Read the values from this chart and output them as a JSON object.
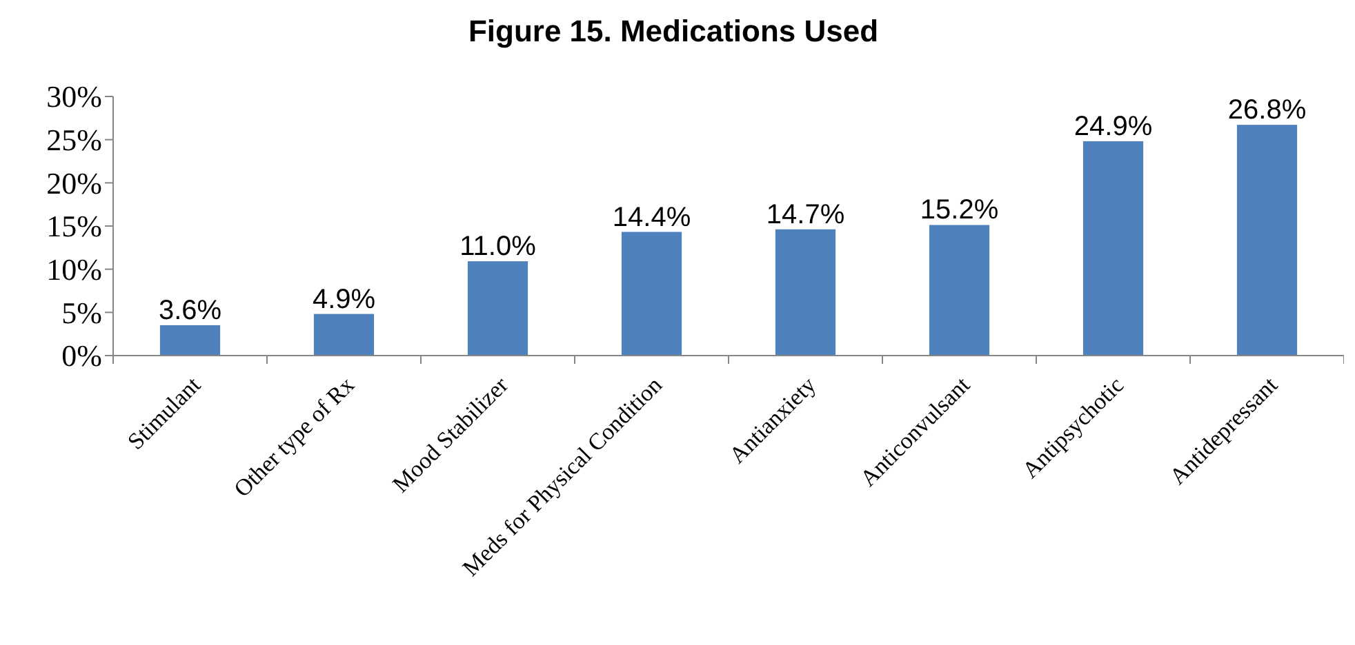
{
  "chart_data": {
    "type": "bar",
    "title": "Figure 15. Medications Used",
    "categories": [
      "Stimulant",
      "Other type of Rx",
      "Mood Stabilizer",
      "Meds for Physical Condition",
      "Antianxiety",
      "Anticonvulsant",
      "Antipsychotic",
      "Antidepressant"
    ],
    "values": [
      3.6,
      4.9,
      11.0,
      14.4,
      14.7,
      15.2,
      24.9,
      26.8
    ],
    "value_labels": [
      "3.6%",
      "4.9%",
      "11.0%",
      "14.4%",
      "14.7%",
      "15.2%",
      "24.9%",
      "26.8%"
    ],
    "color": "#4f81bd",
    "ylim": [
      0,
      30
    ],
    "yticks": [
      {
        "value": 0,
        "label": "0%"
      },
      {
        "value": 5,
        "label": "5%"
      },
      {
        "value": 10,
        "label": "10%"
      },
      {
        "value": 15,
        "label": "15%"
      },
      {
        "value": 20,
        "label": "20%"
      },
      {
        "value": 25,
        "label": "25%"
      },
      {
        "value": 30,
        "label": "30%"
      }
    ],
    "grid": false
  }
}
